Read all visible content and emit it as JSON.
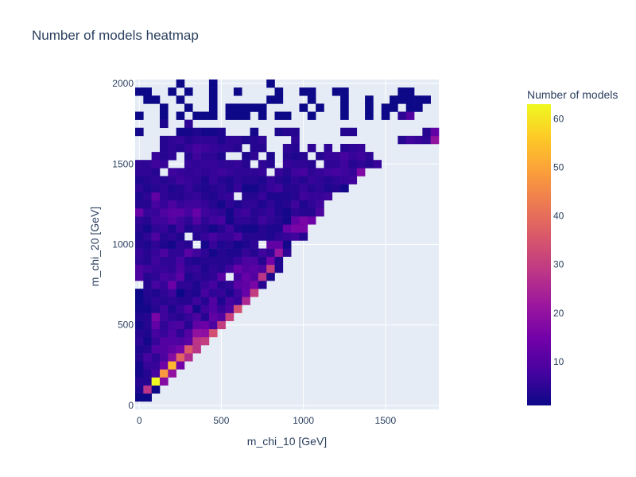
{
  "chart_data": {
    "type": "heatmap",
    "title": "Number of models heatmap",
    "xlabel": "m_chi_10 [GeV]",
    "ylabel": "m_chi_20 [GeV]",
    "xlim": [
      -25,
      1825
    ],
    "ylim": [
      -25,
      2025
    ],
    "bin_width": 50,
    "x_ticks": [
      0,
      500,
      1000,
      1500
    ],
    "y_ticks": [
      0,
      500,
      1000,
      1500,
      2000
    ],
    "x_tick_labels": [
      "0",
      "500",
      "1000",
      "1500"
    ],
    "y_tick_labels": [
      "0",
      "500",
      "1000",
      "1500",
      "2000"
    ],
    "grid": true,
    "colorbar": {
      "title": "Number of models",
      "min": 1,
      "max": 63,
      "ticks": [
        10,
        20,
        30,
        40,
        50,
        60
      ],
      "tick_labels": [
        "10",
        "20",
        "30",
        "40",
        "50",
        "60"
      ]
    },
    "colorscale": [
      "#0d0887",
      "#46039f",
      "#7201a8",
      "#9c179e",
      "#bd3786",
      "#d8576b",
      "#ed7953",
      "#fb9f3a",
      "#fdca26",
      "#f0f921"
    ],
    "rows": [
      {
        "y": 50,
        "x0": 0,
        "values": [
          1,
          1
        ]
      },
      {
        "y": 100,
        "x0": 0,
        "values": [
          3,
          28,
          1
        ]
      },
      {
        "y": 150,
        "x0": 0,
        "values": [
          4,
          4,
          63,
          18
        ]
      },
      {
        "y": 200,
        "x0": 0,
        "values": [
          2,
          4,
          8,
          48,
          20
        ]
      },
      {
        "y": 250,
        "x0": 0,
        "values": [
          2,
          6,
          6,
          14,
          53,
          15
        ]
      },
      {
        "y": 300,
        "x0": 0,
        "values": [
          4,
          8,
          5,
          9,
          18,
          38,
          26
        ]
      },
      {
        "y": 350,
        "x0": 0,
        "values": [
          3,
          4,
          10,
          10,
          12,
          15,
          36,
          28
        ]
      },
      {
        "y": 400,
        "x0": 0,
        "values": [
          5,
          2,
          6,
          10,
          10,
          9,
          11,
          28,
          30
        ]
      },
      {
        "y": 450,
        "x0": 0,
        "values": [
          4,
          3,
          8,
          6,
          9,
          5,
          10,
          20,
          19,
          34
        ]
      },
      {
        "y": 500,
        "x0": 0,
        "values": [
          2,
          4,
          12,
          5,
          8,
          9,
          4,
          12,
          14,
          9,
          30
        ]
      },
      {
        "y": 550,
        "x0": 0,
        "values": [
          3,
          4,
          16,
          7,
          5,
          4,
          6,
          9,
          4,
          12,
          10,
          31
        ]
      },
      {
        "y": 600,
        "x0": 0,
        "values": [
          2,
          2,
          4,
          7,
          3,
          6,
          10,
          2,
          7,
          10,
          6,
          9,
          34
        ]
      },
      {
        "y": 650,
        "x0": 0,
        "values": [
          1,
          3,
          5,
          4,
          5,
          4,
          4,
          7,
          4,
          10,
          3,
          8,
          6,
          25
        ]
      },
      {
        "y": 700,
        "x0": 0,
        "values": [
          1,
          4,
          3,
          5,
          7,
          1,
          4,
          3,
          8,
          5,
          6,
          3,
          7,
          13,
          30
        ]
      },
      {
        "y": 750,
        "x0": 50,
        "values": [
          4,
          8,
          6,
          14,
          5,
          5,
          3,
          6,
          8,
          4,
          5,
          11,
          12,
          16,
          4
        ]
      },
      {
        "y": 800,
        "x0": 0,
        "values": [
          9,
          4,
          5,
          8,
          7,
          11,
          3,
          5,
          4,
          5,
          11,
          0,
          8,
          13,
          10,
          28,
          3
        ]
      },
      {
        "y": 850,
        "x0": 0,
        "values": [
          9,
          7,
          6,
          6,
          5,
          9,
          5,
          6,
          3,
          5,
          4,
          7,
          13,
          10,
          11,
          9,
          30,
          3
        ]
      },
      {
        "y": 900,
        "x0": 0,
        "values": [
          5,
          4,
          7,
          5,
          5,
          8,
          4,
          3,
          4,
          4,
          4,
          4,
          6,
          9,
          9,
          4,
          15,
          3
        ]
      },
      {
        "y": 950,
        "x0": 0,
        "values": [
          6,
          4,
          6,
          9,
          5,
          5,
          11,
          7,
          5,
          2,
          4,
          3,
          3,
          6,
          4,
          7,
          5,
          21,
          5
        ]
      },
      {
        "y": 1000,
        "x0": 0,
        "values": [
          4,
          3,
          5,
          3,
          2,
          5,
          4,
          0,
          2,
          6,
          3,
          4,
          2,
          3,
          5,
          0,
          12,
          12,
          2
        ]
      },
      {
        "y": 1050,
        "x0": 0,
        "values": [
          3,
          5,
          9,
          4,
          5,
          3,
          0,
          4,
          6,
          8,
          6,
          6,
          9,
          4,
          4,
          4,
          3,
          5,
          6,
          7,
          4
        ]
      },
      {
        "y": 1100,
        "x0": 0,
        "values": [
          4,
          2,
          5,
          6,
          3,
          7,
          3,
          5,
          4,
          2,
          4,
          7,
          3,
          2,
          2,
          4,
          3,
          3,
          13,
          16,
          16
        ]
      },
      {
        "y": 1150,
        "x0": 0,
        "values": [
          5,
          4,
          7,
          7,
          10,
          7,
          5,
          10,
          5,
          7,
          8,
          2,
          5,
          5,
          4,
          7,
          5,
          4,
          2,
          12,
          16,
          14
        ]
      },
      {
        "y": 1200,
        "x0": 0,
        "values": [
          13,
          6,
          6,
          9,
          11,
          11,
          8,
          13,
          7,
          6,
          5,
          2,
          6,
          7,
          4,
          5,
          6,
          3,
          2,
          5,
          4,
          4,
          9
        ]
      },
      {
        "y": 1250,
        "x0": 0,
        "values": [
          4,
          4,
          8,
          6,
          9,
          6,
          7,
          7,
          6,
          4,
          2,
          5,
          3,
          5,
          5,
          3,
          5,
          3,
          4,
          7,
          3,
          5,
          7
        ]
      },
      {
        "y": 1300,
        "x0": 0,
        "values": [
          3,
          5,
          12,
          5,
          4,
          4,
          5,
          6,
          4,
          3,
          5,
          6,
          0,
          4,
          4,
          6,
          3,
          3,
          3,
          4,
          7,
          6,
          6,
          7
        ]
      },
      {
        "y": 1350,
        "x0": 0,
        "values": [
          5,
          3,
          4,
          5,
          3,
          4,
          6,
          4,
          3,
          4,
          5,
          3,
          6,
          2,
          2,
          4,
          6,
          7,
          4,
          4,
          6,
          4,
          5,
          3,
          4,
          2
        ]
      },
      {
        "y": 1400,
        "x0": 0,
        "values": [
          3,
          4,
          5,
          4,
          5,
          7,
          6,
          5,
          3,
          6,
          4,
          3,
          5,
          4,
          4,
          3,
          6,
          4,
          3,
          5,
          4,
          6,
          5,
          4,
          5,
          6,
          7
        ]
      },
      {
        "y": 1450,
        "x0": 0,
        "values": [
          5,
          5,
          4,
          0,
          7,
          6,
          5,
          6,
          5,
          6,
          7,
          6,
          5,
          5,
          5,
          6,
          0,
          6,
          4,
          7,
          8,
          5,
          6,
          7,
          8,
          7,
          6,
          17
        ]
      },
      {
        "y": 1500,
        "x0": 0,
        "values": [
          5,
          5,
          7,
          6,
          0,
          0,
          6,
          5,
          6,
          6,
          5,
          5,
          6,
          4,
          0,
          5,
          4,
          0,
          6,
          5,
          5,
          4,
          0,
          5,
          5,
          7,
          4,
          5,
          4,
          6
        ]
      },
      {
        "y": 1550,
        "x0": 0,
        "values": [
          0,
          0,
          6,
          4,
          5,
          0,
          4,
          7,
          5,
          5,
          3,
          0,
          0,
          3,
          5,
          0,
          3,
          0,
          4,
          3,
          4,
          0,
          4,
          6,
          6,
          8,
          6,
          7,
          5
        ]
      },
      {
        "y": 1600,
        "x0": 0,
        "values": [
          0,
          0,
          0,
          4,
          5,
          4,
          6,
          8,
          7,
          6,
          5,
          5,
          4,
          0,
          4,
          4,
          0,
          0,
          5,
          4,
          0,
          5,
          0,
          5,
          0,
          4,
          5,
          6,
          0,
          0
        ]
      },
      {
        "y": 1650,
        "x0": 0,
        "values": [
          0,
          0,
          0,
          4,
          5,
          6,
          4,
          5,
          5,
          5,
          3,
          5,
          5,
          3,
          4,
          5,
          0,
          0,
          0,
          5,
          0,
          0,
          0,
          0,
          0,
          0,
          0,
          0,
          0,
          0,
          0,
          0,
          4,
          7,
          6,
          5,
          20
        ]
      },
      {
        "y": 1700,
        "x0": 0,
        "values": [
          2,
          0,
          0,
          0,
          0,
          2,
          2,
          3,
          2,
          2,
          3,
          0,
          0,
          0,
          2,
          0,
          0,
          3,
          4,
          4,
          0,
          0,
          0,
          0,
          0,
          4,
          4,
          0,
          0,
          0,
          0,
          0,
          0,
          0,
          0,
          4,
          12,
          4
        ]
      },
      {
        "y": 1750,
        "x0": 0,
        "values": [
          0,
          0,
          0,
          3,
          0,
          0,
          5,
          0,
          0,
          0,
          0,
          0,
          0,
          0,
          0,
          0,
          0,
          0,
          0,
          0,
          0,
          0,
          0,
          0,
          0,
          0,
          0,
          0,
          0,
          0,
          0,
          0,
          0,
          0,
          0,
          0,
          0,
          0
        ]
      },
      {
        "y": 1800,
        "x0": 0,
        "values": [
          0,
          2,
          0,
          0,
          2,
          0,
          0,
          0,
          0,
          2,
          0,
          0,
          0,
          0,
          0,
          0,
          0,
          0,
          0,
          0,
          0,
          0,
          0,
          0,
          0,
          0,
          0,
          0,
          0,
          0,
          0,
          0,
          0,
          0,
          0,
          0,
          0,
          0
        ]
      },
      {
        "y": 1850,
        "x0": 0,
        "values": [
          3,
          4,
          0,
          0,
          3,
          0,
          3,
          0,
          0,
          0,
          0,
          0,
          0,
          0,
          0,
          0,
          0,
          0,
          0,
          0,
          0,
          0,
          0,
          0,
          0,
          0,
          0,
          0,
          0,
          0,
          0,
          0,
          0,
          0,
          0,
          0,
          0,
          0
        ]
      },
      {
        "y": 1900,
        "x0": 0,
        "values": [
          0,
          0,
          0,
          0,
          0,
          0,
          2,
          0,
          0,
          0,
          0,
          0,
          0,
          0,
          0,
          0,
          0,
          0,
          0,
          0,
          0,
          0,
          0,
          0,
          0,
          0,
          0,
          0,
          0,
          0,
          0,
          0,
          0,
          0,
          0,
          0,
          0,
          0
        ]
      },
      {
        "y": 1950,
        "x0": 0,
        "values": [
          0,
          0,
          0,
          0,
          0,
          0,
          0,
          0,
          0,
          0,
          0,
          0,
          0,
          0,
          0,
          0,
          0,
          0,
          0,
          0,
          0,
          0,
          0,
          0,
          0,
          0,
          0,
          0,
          0,
          0,
          0,
          0,
          0,
          0,
          0,
          0,
          0,
          0
        ]
      },
      {
        "y": 2000,
        "x0": 0,
        "values": [
          0,
          0,
          0,
          0,
          0,
          0,
          0,
          0,
          0,
          0,
          0,
          0,
          0,
          0,
          0,
          0,
          0,
          0,
          0,
          0,
          0,
          0,
          0,
          0,
          0,
          0,
          0,
          0,
          0,
          0,
          0,
          0,
          0,
          0,
          0,
          0,
          0,
          0
        ]
      }
    ],
    "sparse_cells": [
      {
        "x": 250,
        "y": 2000,
        "v": 1
      },
      {
        "x": 450,
        "y": 2000,
        "v": 1
      },
      {
        "x": 800,
        "y": 2000,
        "v": 1
      },
      {
        "x": 0,
        "y": 1950,
        "v": 1
      },
      {
        "x": 50,
        "y": 1950,
        "v": 1
      },
      {
        "x": 200,
        "y": 1950,
        "v": 1
      },
      {
        "x": 300,
        "y": 1950,
        "v": 1
      },
      {
        "x": 450,
        "y": 1950,
        "v": 1
      },
      {
        "x": 600,
        "y": 1950,
        "v": 1
      },
      {
        "x": 850,
        "y": 1950,
        "v": 1
      },
      {
        "x": 1000,
        "y": 1950,
        "v": 1
      },
      {
        "x": 1050,
        "y": 1950,
        "v": 1
      },
      {
        "x": 1200,
        "y": 1950,
        "v": 1
      },
      {
        "x": 1250,
        "y": 1950,
        "v": 1
      },
      {
        "x": 1600,
        "y": 1950,
        "v": 1
      },
      {
        "x": 1650,
        "y": 1950,
        "v": 1
      },
      {
        "x": 50,
        "y": 1900,
        "v": 1
      },
      {
        "x": 100,
        "y": 1900,
        "v": 1
      },
      {
        "x": 250,
        "y": 1900,
        "v": 1
      },
      {
        "x": 450,
        "y": 1900,
        "v": 1
      },
      {
        "x": 800,
        "y": 1900,
        "v": 1
      },
      {
        "x": 850,
        "y": 1900,
        "v": 1
      },
      {
        "x": 1050,
        "y": 1900,
        "v": 1
      },
      {
        "x": 1250,
        "y": 1900,
        "v": 1
      },
      {
        "x": 1400,
        "y": 1900,
        "v": 1
      },
      {
        "x": 1550,
        "y": 1900,
        "v": 1
      },
      {
        "x": 1600,
        "y": 1900,
        "v": 1
      },
      {
        "x": 1650,
        "y": 1900,
        "v": 1
      },
      {
        "x": 1700,
        "y": 1900,
        "v": 1
      },
      {
        "x": 1750,
        "y": 1900,
        "v": 1
      },
      {
        "x": 150,
        "y": 1850,
        "v": 1
      },
      {
        "x": 300,
        "y": 1850,
        "v": 1
      },
      {
        "x": 450,
        "y": 1850,
        "v": 1
      },
      {
        "x": 550,
        "y": 1850,
        "v": 1
      },
      {
        "x": 600,
        "y": 1850,
        "v": 1
      },
      {
        "x": 650,
        "y": 1850,
        "v": 1
      },
      {
        "x": 700,
        "y": 1850,
        "v": 1
      },
      {
        "x": 750,
        "y": 1850,
        "v": 1
      },
      {
        "x": 1000,
        "y": 1850,
        "v": 1
      },
      {
        "x": 1100,
        "y": 1850,
        "v": 1
      },
      {
        "x": 1250,
        "y": 1850,
        "v": 1
      },
      {
        "x": 1400,
        "y": 1850,
        "v": 1
      },
      {
        "x": 1500,
        "y": 1850,
        "v": 1
      },
      {
        "x": 1550,
        "y": 1850,
        "v": 1
      },
      {
        "x": 1650,
        "y": 1850,
        "v": 1
      },
      {
        "x": 1700,
        "y": 1850,
        "v": 1
      },
      {
        "x": 0,
        "y": 1800,
        "v": 1
      },
      {
        "x": 150,
        "y": 1800,
        "v": 1
      },
      {
        "x": 250,
        "y": 1800,
        "v": 1
      },
      {
        "x": 350,
        "y": 1800,
        "v": 1
      },
      {
        "x": 400,
        "y": 1800,
        "v": 1
      },
      {
        "x": 450,
        "y": 1800,
        "v": 1
      },
      {
        "x": 550,
        "y": 1800,
        "v": 1
      },
      {
        "x": 600,
        "y": 1800,
        "v": 1
      },
      {
        "x": 650,
        "y": 1800,
        "v": 1
      },
      {
        "x": 750,
        "y": 1800,
        "v": 1
      },
      {
        "x": 850,
        "y": 1800,
        "v": 1
      },
      {
        "x": 900,
        "y": 1800,
        "v": 1
      },
      {
        "x": 1050,
        "y": 1800,
        "v": 1
      },
      {
        "x": 1250,
        "y": 1800,
        "v": 1
      },
      {
        "x": 1400,
        "y": 1800,
        "v": 1
      },
      {
        "x": 1500,
        "y": 1800,
        "v": 1
      },
      {
        "x": 1600,
        "y": 1800,
        "v": 5
      },
      {
        "x": 1650,
        "y": 1800,
        "v": 10
      }
    ]
  }
}
